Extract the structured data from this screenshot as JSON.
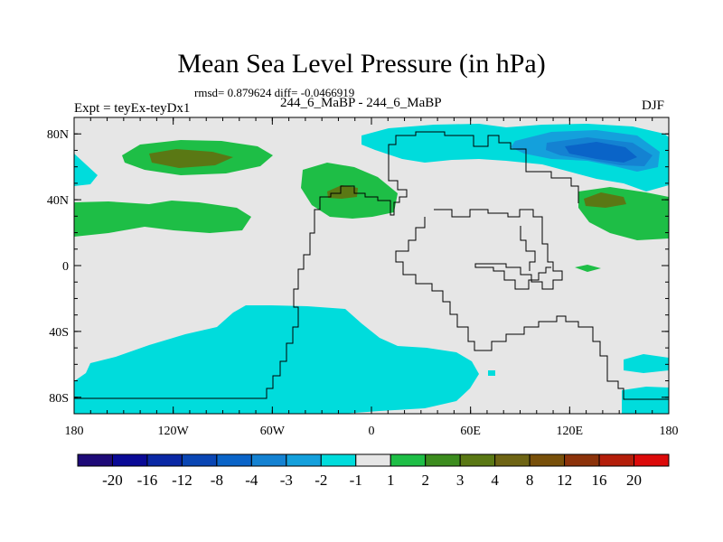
{
  "title": "Mean Sea Level Pressure (in hPa)",
  "stats_text": "rmsd= 0.879624 diff= -0.0466919",
  "expt_label": "Expt = teyEx-teyDx1",
  "center_label": "244_6_MaBP - 244_6_MaBP",
  "season": "DJF",
  "map": {
    "x_range": [
      -180,
      180
    ],
    "y_range": [
      -90,
      90
    ],
    "x_ticks": [
      {
        "value": -180,
        "label": "180"
      },
      {
        "value": -120,
        "label": "120W"
      },
      {
        "value": -60,
        "label": "60W"
      },
      {
        "value": 0,
        "label": "0"
      },
      {
        "value": 60,
        "label": "60E"
      },
      {
        "value": 120,
        "label": "120E"
      },
      {
        "value": 180,
        "label": "180"
      }
    ],
    "y_ticks": [
      {
        "value": 80,
        "label": "80N"
      },
      {
        "value": 40,
        "label": "40N"
      },
      {
        "value": 0,
        "label": "0"
      },
      {
        "value": -40,
        "label": "40S"
      },
      {
        "value": -80,
        "label": "80S"
      }
    ],
    "background_color": "#e6e6e6"
  },
  "colorbar": {
    "colors": [
      "#1e0a78",
      "#0a0a96",
      "#0a28a5",
      "#0a46b4",
      "#0a64c8",
      "#1482d2",
      "#14a0dc",
      "#00dcdc",
      "#e6e6e6",
      "#1ebe46",
      "#3c8c1e",
      "#5a7814",
      "#6e6414",
      "#78500a",
      "#8c320a",
      "#b41e0a",
      "#dc0a0a"
    ],
    "labels": [
      "-20",
      "-16",
      "-12",
      "-8",
      "-4",
      "-3",
      "-2",
      "-1",
      "1",
      "2",
      "3",
      "4",
      "8",
      "12",
      "16",
      "20"
    ]
  }
}
